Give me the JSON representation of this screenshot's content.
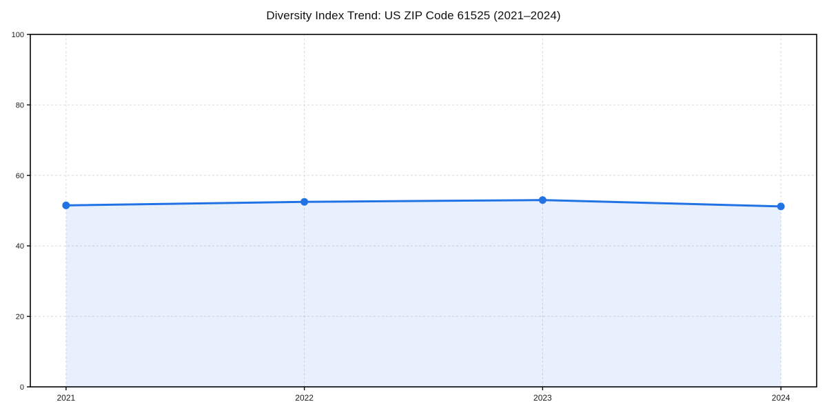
{
  "figure": {
    "background": "#ffffff"
  },
  "chart_data": {
    "type": "line",
    "title": "Diversity Index Trend: US ZIP Code 61525 (2021–2024)",
    "x": [
      2021,
      2022,
      2023,
      2024
    ],
    "xtick_labels": [
      "2021",
      "2022",
      "2023",
      "2024"
    ],
    "series": [
      {
        "name": "Diversity Index",
        "values": [
          51.5,
          52.5,
          53.0,
          51.2
        ]
      }
    ],
    "xlabel": "",
    "ylabel": "",
    "xlim": [
      2020.85,
      2024.15
    ],
    "ylim": [
      0,
      100
    ],
    "yticks": [
      0,
      20,
      40,
      60,
      80,
      100
    ],
    "ytick_labels": [
      "0",
      "20",
      "40",
      "60",
      "80",
      "100"
    ],
    "grid": true,
    "grid_style": "dashed",
    "legend": "none",
    "marker": "circle",
    "area_fill": true,
    "colors": {
      "line": "#2172e5",
      "marker": "#2172e5",
      "area": "rgba(33,114,229,0.11)",
      "grid": "#d9d9d9",
      "axis": "#000000",
      "tick_text": "#1a1a1a",
      "title_text": "#111111"
    }
  }
}
